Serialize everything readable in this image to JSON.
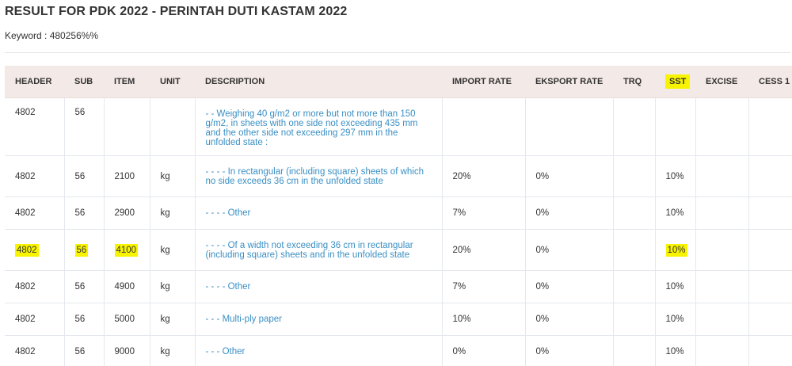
{
  "page": {
    "title": "RESULT FOR PDK 2022 - PERINTAH DUTI KASTAM 2022",
    "keyword_label": "Keyword : ",
    "keyword_value": "480256%%"
  },
  "table": {
    "columns": [
      "HEADER",
      "SUB",
      "ITEM",
      "UNIT",
      "DESCRIPTION",
      "IMPORT RATE",
      "EKSPORT RATE",
      "TRQ",
      "SST",
      "EXCISE",
      "CESS 1"
    ],
    "rows": [
      {
        "header": "4802",
        "sub": "56",
        "item": "",
        "unit": "",
        "description": "- - Weighing 40 g/m2 or more but not more than 150 g/m2, in sheets with one side not exceeding 435 mm and the other side not exceeding 297 mm in the unfolded state :",
        "import_rate": "",
        "eksport_rate": "",
        "trq": "",
        "sst": "",
        "excise": "",
        "cess1": ""
      },
      {
        "header": "4802",
        "sub": "56",
        "item": "2100",
        "unit": "kg",
        "description": "- - - -  In rectangular (including square) sheets of which no side exceeds 36 cm in the unfolded state",
        "import_rate": "20%",
        "eksport_rate": "0%",
        "trq": "",
        "sst": "10%",
        "excise": "",
        "cess1": ""
      },
      {
        "header": "4802",
        "sub": "56",
        "item": "2900",
        "unit": "kg",
        "description": "- - - - Other",
        "import_rate": "7%",
        "eksport_rate": "0%",
        "trq": "",
        "sst": "10%",
        "excise": "",
        "cess1": ""
      },
      {
        "header": "4802",
        "sub": "56",
        "item": "4100",
        "unit": "kg",
        "description": "- - - - Of a width not exceeding 36 cm in rectangular (including square) sheets and in the unfolded state",
        "import_rate": "20%",
        "eksport_rate": "0%",
        "trq": "",
        "sst": "10%",
        "excise": "",
        "cess1": ""
      },
      {
        "header": "4802",
        "sub": "56",
        "item": "4900",
        "unit": "kg",
        "description": "- - - - Other",
        "import_rate": "7%",
        "eksport_rate": "0%",
        "trq": "",
        "sst": "10%",
        "excise": "",
        "cess1": ""
      },
      {
        "header": "4802",
        "sub": "56",
        "item": "5000",
        "unit": "kg",
        "description": "- - - Multi-ply paper",
        "import_rate": "10%",
        "eksport_rate": "0%",
        "trq": "",
        "sst": "10%",
        "excise": "",
        "cess1": ""
      },
      {
        "header": "4802",
        "sub": "56",
        "item": "9000",
        "unit": "kg",
        "description": "- - - Other",
        "import_rate": "0%",
        "eksport_rate": "0%",
        "trq": "",
        "sst": "10%",
        "excise": "",
        "cess1": ""
      }
    ]
  },
  "colors": {
    "header_bg": "#f3e9e6",
    "description_text": "#3a8fc4",
    "highlight": "#f8f400",
    "border": "#e4e8ee"
  }
}
